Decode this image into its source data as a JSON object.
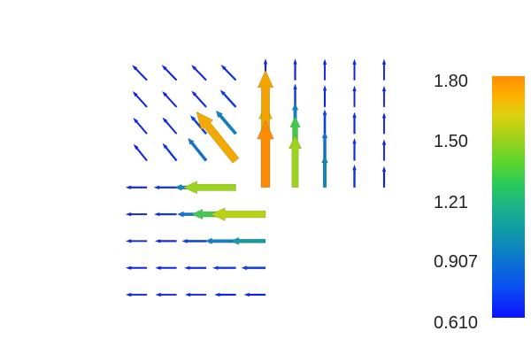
{
  "chart_data": {
    "type": "vector-field",
    "title": "",
    "colormap": [
      "#0b12ff",
      "#0c76cf",
      "#1bb38a",
      "#5ad62e",
      "#ddd10d",
      "#ff8c00"
    ],
    "colorbar": {
      "min": 0.61,
      "max": 1.8,
      "tick_labels": [
        "1.80",
        "1.50",
        "1.21",
        "0.907",
        "0.610"
      ],
      "tick_values": [
        1.8,
        1.5,
        1.21,
        0.907,
        0.61
      ]
    },
    "grid_x": [
      0,
      1,
      2,
      3,
      4,
      5,
      6,
      7,
      8
    ],
    "grid_y": [
      0,
      1,
      2,
      3,
      4,
      5,
      6,
      7,
      8
    ],
    "domain": "L-shaped region: x in [0,8], y in [0,8], excluding x > 4 and y < 4",
    "note_reentrant_corner": [
      4,
      4
    ]
  }
}
